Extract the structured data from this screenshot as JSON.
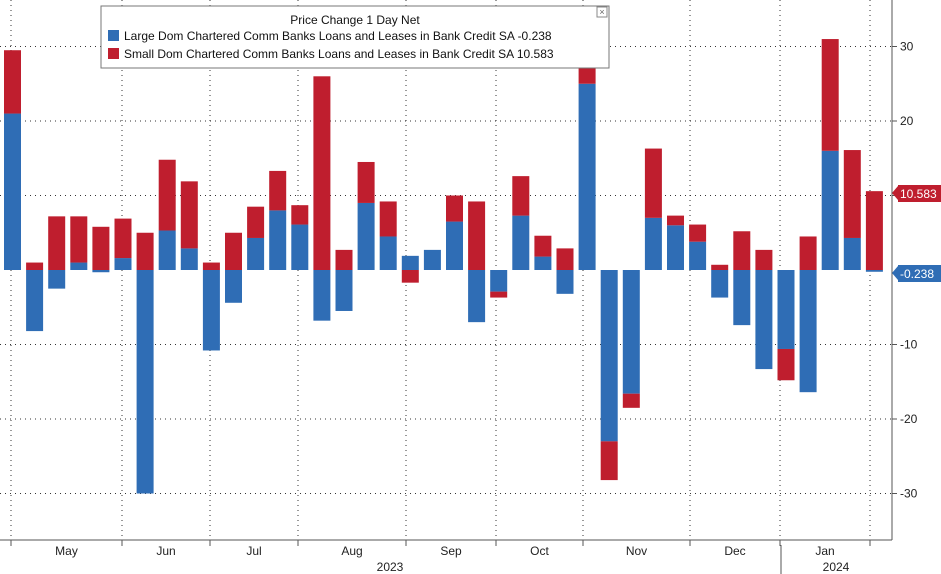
{
  "chart_data": {
    "type": "bar",
    "stacked": true,
    "title": "Price Change 1 Day Net",
    "ylim": [
      -36,
      36
    ],
    "yticks": [
      30,
      20,
      10,
      -10,
      -20,
      -30
    ],
    "grid": true,
    "legend_position": "top-center",
    "months": [
      "May",
      "Jun",
      "Jul",
      "Aug",
      "Sep",
      "Oct",
      "Nov",
      "Dec",
      "Jan"
    ],
    "years": [
      "2023",
      "2024"
    ],
    "series": [
      {
        "name": "Large Dom Chartered Comm Banks Loans and Leases in Bank Credit SA",
        "last_value": "-0.238",
        "color": "#2f6db5",
        "values": [
          21.0,
          -8.2,
          -2.5,
          1.0,
          -0.3,
          1.6,
          -30.0,
          5.3,
          2.9,
          -10.8,
          -4.4,
          4.3,
          8.0,
          6.1,
          -6.8,
          -5.5,
          9.0,
          4.5,
          1.9,
          2.7,
          6.5,
          -7.0,
          -2.9,
          7.3,
          1.8,
          -3.2,
          25.0,
          -23.0,
          -16.6,
          7.0,
          6.0,
          3.8,
          -3.7,
          -7.4,
          -13.3,
          -10.6,
          -16.4,
          16.0,
          4.3,
          -0.238
        ]
      },
      {
        "name": "Small Dom Chartered Comm Banks Loans and Leases in Bank Credit SA",
        "last_value": "10.583",
        "color": "#bf1e2e",
        "values": [
          8.5,
          1.0,
          7.2,
          6.2,
          5.8,
          5.3,
          5.0,
          9.5,
          9.0,
          1.0,
          5.0,
          4.2,
          5.3,
          2.6,
          26.0,
          2.7,
          5.5,
          4.7,
          -1.7,
          0,
          3.5,
          9.2,
          -0.8,
          5.3,
          2.8,
          2.9,
          2.4,
          -5.2,
          -1.9,
          9.3,
          1.3,
          2.3,
          0.7,
          5.2,
          2.7,
          -4.2,
          4.5,
          15.0,
          11.8,
          10.583
        ]
      }
    ]
  }
}
